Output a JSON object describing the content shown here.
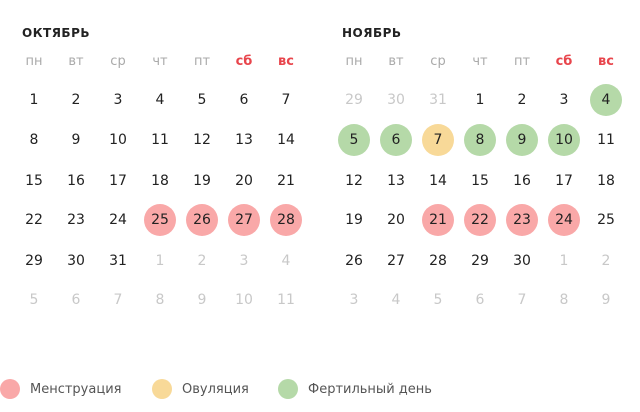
{
  "colors": {
    "menstruation": "#f9a8a8",
    "ovulation": "#f8d998",
    "fertile": "#b5d9a8",
    "weekend_label": "#e8454c"
  },
  "weekdays": [
    "пн",
    "вт",
    "ср",
    "чт",
    "пт",
    "сб",
    "вс"
  ],
  "months": [
    {
      "title": "ОКТЯБРЬ",
      "weeks": [
        [
          {
            "d": "1"
          },
          {
            "d": "2"
          },
          {
            "d": "3"
          },
          {
            "d": "4"
          },
          {
            "d": "5"
          },
          {
            "d": "6"
          },
          {
            "d": "7"
          }
        ],
        [
          {
            "d": "8"
          },
          {
            "d": "9"
          },
          {
            "d": "10"
          },
          {
            "d": "11"
          },
          {
            "d": "12"
          },
          {
            "d": "13"
          },
          {
            "d": "14"
          }
        ],
        [
          {
            "d": "15"
          },
          {
            "d": "16"
          },
          {
            "d": "17"
          },
          {
            "d": "18"
          },
          {
            "d": "19"
          },
          {
            "d": "20"
          },
          {
            "d": "21"
          }
        ],
        [
          {
            "d": "22"
          },
          {
            "d": "23"
          },
          {
            "d": "24"
          },
          {
            "d": "25",
            "s": "mens"
          },
          {
            "d": "26",
            "s": "mens"
          },
          {
            "d": "27",
            "s": "mens"
          },
          {
            "d": "28",
            "s": "mens"
          }
        ],
        [
          {
            "d": "29"
          },
          {
            "d": "30"
          },
          {
            "d": "31"
          },
          {
            "d": "1",
            "m": true
          },
          {
            "d": "2",
            "m": true
          },
          {
            "d": "3",
            "m": true
          },
          {
            "d": "4",
            "m": true
          }
        ],
        [
          {
            "d": "5",
            "m": true
          },
          {
            "d": "6",
            "m": true
          },
          {
            "d": "7",
            "m": true
          },
          {
            "d": "8",
            "m": true
          },
          {
            "d": "9",
            "m": true
          },
          {
            "d": "10",
            "m": true
          },
          {
            "d": "11",
            "m": true
          }
        ]
      ]
    },
    {
      "title": "НОЯБРЬ",
      "weeks": [
        [
          {
            "d": "29",
            "m": true
          },
          {
            "d": "30",
            "m": true
          },
          {
            "d": "31",
            "m": true
          },
          {
            "d": "1"
          },
          {
            "d": "2"
          },
          {
            "d": "3"
          },
          {
            "d": "4",
            "s": "fert"
          }
        ],
        [
          {
            "d": "5",
            "s": "fert"
          },
          {
            "d": "6",
            "s": "fert"
          },
          {
            "d": "7",
            "s": "ovul"
          },
          {
            "d": "8",
            "s": "fert"
          },
          {
            "d": "9",
            "s": "fert"
          },
          {
            "d": "10",
            "s": "fert"
          },
          {
            "d": "11"
          }
        ],
        [
          {
            "d": "12"
          },
          {
            "d": "13"
          },
          {
            "d": "14"
          },
          {
            "d": "15"
          },
          {
            "d": "16"
          },
          {
            "d": "17"
          },
          {
            "d": "18"
          }
        ],
        [
          {
            "d": "19"
          },
          {
            "d": "20"
          },
          {
            "d": "21",
            "s": "mens"
          },
          {
            "d": "22",
            "s": "mens"
          },
          {
            "d": "23",
            "s": "mens"
          },
          {
            "d": "24",
            "s": "mens"
          },
          {
            "d": "25"
          }
        ],
        [
          {
            "d": "26"
          },
          {
            "d": "27"
          },
          {
            "d": "28"
          },
          {
            "d": "29"
          },
          {
            "d": "30"
          },
          {
            "d": "1",
            "m": true
          },
          {
            "d": "2",
            "m": true
          }
        ],
        [
          {
            "d": "3",
            "m": true
          },
          {
            "d": "4",
            "m": true
          },
          {
            "d": "5",
            "m": true
          },
          {
            "d": "6",
            "m": true
          },
          {
            "d": "7",
            "m": true
          },
          {
            "d": "8",
            "m": true
          },
          {
            "d": "9",
            "m": true
          }
        ]
      ]
    }
  ],
  "legend": [
    {
      "key": "mens",
      "label": "Менструация"
    },
    {
      "key": "ovul",
      "label": "Овуляция"
    },
    {
      "key": "fert",
      "label": "Фертильный день"
    }
  ]
}
